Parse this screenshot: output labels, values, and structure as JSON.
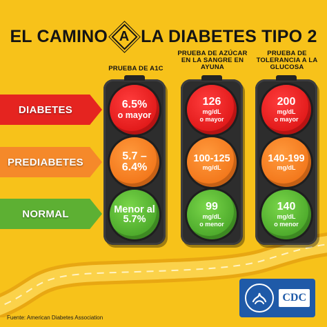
{
  "title": {
    "part1": "EL CAMINO",
    "sign_letter": "A",
    "part2": "LA DIABETES TIPO 2"
  },
  "columns": [
    {
      "header": "PRUEBA DE A1C"
    },
    {
      "header": "PRUEBA DE AZÚCAR EN LA SANGRE EN AYUNA"
    },
    {
      "header": "PRUEBA DE TOLERANCIA A LA GLUCOSA"
    }
  ],
  "rows": [
    {
      "label": "DIABETES",
      "color": "#e52420"
    },
    {
      "label": "PREDIABETES",
      "color": "#f5892a"
    },
    {
      "label": "NORMAL",
      "color": "#5db033"
    }
  ],
  "values": {
    "a1c": {
      "diabetes": {
        "main": "6.5%",
        "sub": "o mayor"
      },
      "prediabetes": {
        "main": "5.7 –",
        "sub": "6.4%"
      },
      "normal": {
        "main": "Menor al",
        "sub": "5.7%"
      }
    },
    "fasting": {
      "diabetes": {
        "main": "126",
        "unit": "mg/dL",
        "sub": "o mayor"
      },
      "prediabetes": {
        "main": "100-125",
        "unit": "mg/dL"
      },
      "normal": {
        "main": "99",
        "unit": "mg/dL",
        "sub": "o menor"
      }
    },
    "tolerance": {
      "diabetes": {
        "main": "200",
        "unit": "mg/dL",
        "sub": "o mayor"
      },
      "prediabetes": {
        "main": "140-199",
        "unit": "mg/dL"
      },
      "normal": {
        "main": "140",
        "unit": "mg/dL",
        "sub": "o menor"
      }
    }
  },
  "colors": {
    "background": "#f7c21a",
    "red_light": "#e01818",
    "orange_light": "#f2761a",
    "green_light": "#4ba82a",
    "cdc_blue": "#1f5aa8"
  },
  "footer": {
    "source": "Fuente: American Diabetes Association",
    "logo_text": "CDC"
  }
}
